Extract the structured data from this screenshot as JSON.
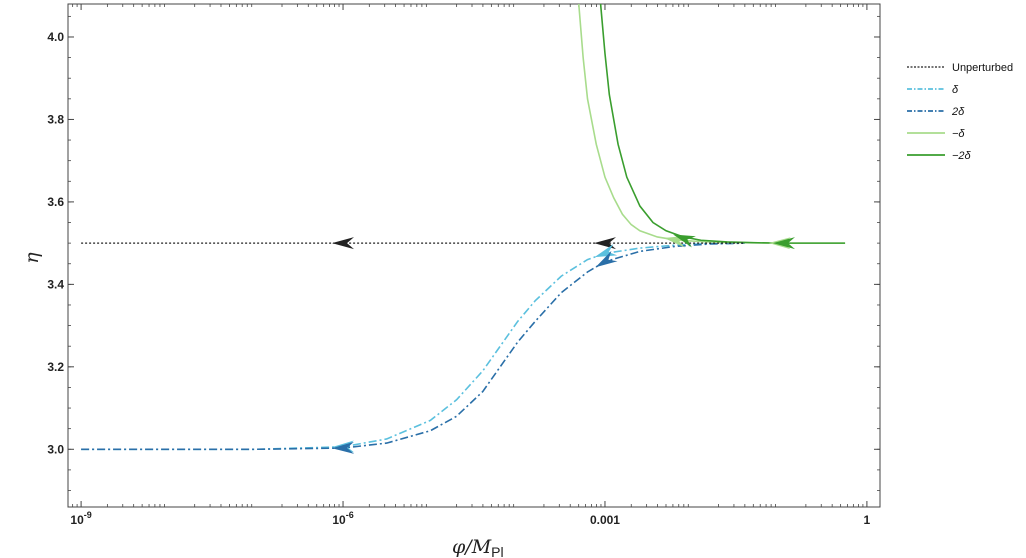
{
  "chart_data": {
    "type": "line",
    "x_scale": "log10",
    "xlim_log10": [
      -9.15,
      0.15
    ],
    "ylim": [
      2.86,
      4.08
    ],
    "x_ticks_log10": [
      -9,
      -6,
      -3,
      0
    ],
    "x_tick_labels": [
      "10",
      "10",
      "0.001",
      "1"
    ],
    "x_tick_label_exponents": [
      "-9",
      "-6",
      "",
      ""
    ],
    "y_ticks": [
      3.0,
      3.2,
      3.4,
      3.6,
      3.8,
      4.0
    ],
    "y_tick_labels": [
      "3.0",
      "3.2",
      "3.4",
      "3.6",
      "3.8",
      "4.0"
    ],
    "xlabel": {
      "main": "φ/M",
      "sub": "Pl"
    },
    "ylabel": "η",
    "grid": false,
    "legend_position": "right",
    "series": [
      {
        "name": "Unperturbed",
        "color": "#222222",
        "dash": "2,2",
        "width": 1.2,
        "x_log10": [
          -9,
          -6,
          -3,
          -1.4
        ],
        "y": [
          3.5,
          3.5,
          3.5,
          3.5
        ],
        "arrows": [
          [
            -6,
            3.5
          ],
          [
            -3,
            3.5
          ]
        ]
      },
      {
        "name": "δ",
        "color": "#5bc0de",
        "dash": "8,3,2,3",
        "width": 1.6,
        "x_log10": [
          -9,
          -7,
          -6,
          -5.5,
          -5,
          -4.7,
          -4.4,
          -4.2,
          -4.0,
          -3.8,
          -3.5,
          -3.2,
          -3.0,
          -2.6,
          -2.2,
          -1.8,
          -1.4
        ],
        "y": [
          3.0,
          3.0,
          3.006,
          3.025,
          3.07,
          3.12,
          3.19,
          3.25,
          3.31,
          3.36,
          3.42,
          3.46,
          3.475,
          3.488,
          3.495,
          3.499,
          3.5
        ],
        "arrows": [
          [
            -6,
            3.006
          ],
          [
            -3.0,
            3.475
          ]
        ]
      },
      {
        "name": "2δ",
        "color": "#2a6fa8",
        "dash": "8,3,2,3",
        "width": 1.6,
        "x_log10": [
          -9,
          -7,
          -6,
          -5.5,
          -5,
          -4.7,
          -4.4,
          -4.2,
          -4.0,
          -3.8,
          -3.5,
          -3.2,
          -3.0,
          -2.6,
          -2.2,
          -1.8,
          -1.4
        ],
        "y": [
          3.0,
          3.0,
          3.003,
          3.015,
          3.045,
          3.08,
          3.14,
          3.2,
          3.26,
          3.31,
          3.38,
          3.43,
          3.455,
          3.48,
          3.492,
          3.498,
          3.5
        ],
        "arrows": [
          [
            -6,
            3.003
          ],
          [
            -3.0,
            3.455
          ]
        ]
      },
      {
        "name": "−δ",
        "color": "#a8dc8c",
        "dash": "",
        "width": 1.6,
        "x_log10": [
          -3.3,
          -3.25,
          -3.2,
          -3.1,
          -3.0,
          -2.9,
          -2.8,
          -2.7,
          -2.6,
          -2.4,
          -2.2,
          -2.0,
          -1.7,
          -1.4,
          -1.0,
          -0.6,
          -0.25
        ],
        "y": [
          4.08,
          3.95,
          3.85,
          3.74,
          3.66,
          3.61,
          3.57,
          3.545,
          3.53,
          3.515,
          3.508,
          3.505,
          3.502,
          3.501,
          3.5,
          3.5,
          3.5
        ],
        "arrows": [
          [
            -2.2,
            3.508
          ],
          [
            -1.0,
            3.5
          ]
        ]
      },
      {
        "name": "−2δ",
        "color": "#3a9e2e",
        "dash": "",
        "width": 1.6,
        "x_log10": [
          -3.05,
          -3.0,
          -2.95,
          -2.85,
          -2.75,
          -2.6,
          -2.45,
          -2.3,
          -2.1,
          -1.9,
          -1.6,
          -1.3,
          -1.0,
          -0.6,
          -0.25
        ],
        "y": [
          4.08,
          3.96,
          3.86,
          3.74,
          3.66,
          3.59,
          3.55,
          3.53,
          3.515,
          3.507,
          3.503,
          3.501,
          3.5,
          3.5,
          3.5
        ],
        "arrows": [
          [
            -2.1,
            3.512
          ],
          [
            -0.95,
            3.5
          ]
        ]
      }
    ]
  }
}
